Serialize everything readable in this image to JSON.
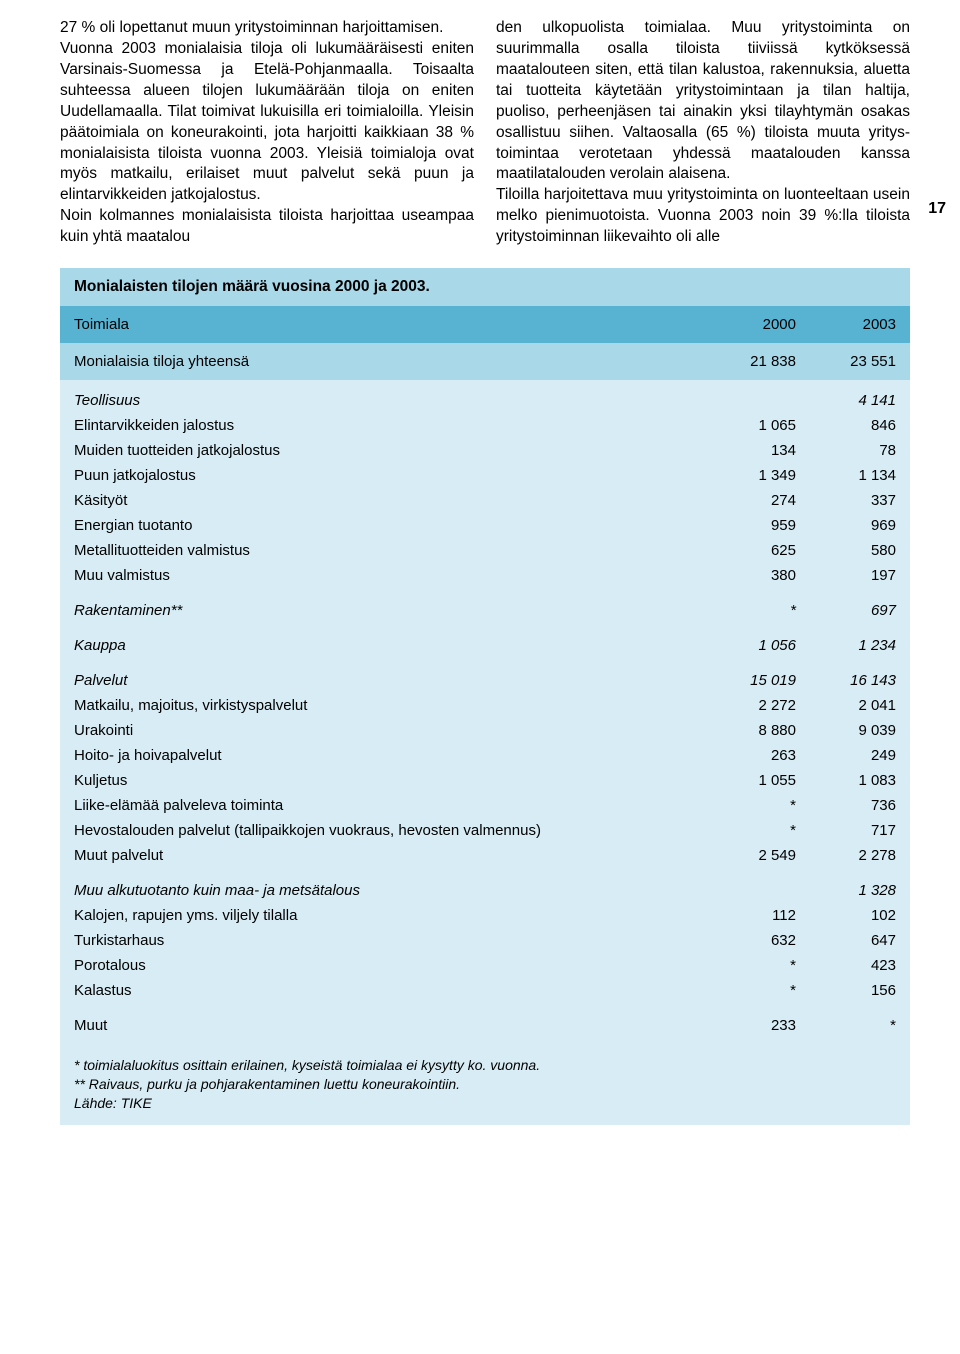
{
  "page_number": "17",
  "colors": {
    "header_band": "#58b3d3",
    "light_band": "#a9d8e8",
    "body_band": "#d7ecf4",
    "text": "#000000",
    "background": "#ffffff"
  },
  "paragraphs": {
    "left": "27 % oli lopettanut muun yritystoiminnan harjoittamisen.\n    Vuonna 2003 monialaisia tiloja oli lu­kumääräisesti eniten Varsinais-Suomessa ja Etelä-Pohjanmaalla. Toisaalta suhteessa alueen tilojen lukumäärään tiloja on eniten Uudellamaalla. Tilat toimivat lukuisilla eri toimialoilla. Yleisin päätoimiala on kone­urakointi, jota harjoitti kaikkiaan 38 % monialaisista tiloista vuonna 2003. Yleisiä toimialoja ovat myös matkailu, erilaiset muut palvelut sekä puun ja elintarvikkei­den jatkojalostus.\n    Noin kolmannes monialaisista tiloista harjoittaa useampaa kuin yhtä maatalou­",
    "right": "den ulkopuolista toimialaa. Muu yritystoi­minta on suurimmalla osalla tiloista tiiviis­sä kytköksessä maatalouteen siten, että ti­lan kalustoa, rakennuksia, aluetta tai tuot­teita käytetään yritystoimintaan ja tilan haltija, puoliso, perheenjäsen tai ainakin yksi tilayhtymän osakas osallistuu siihen. Valtaosalla (65 %) tiloista muuta yritys­toimintaa verotetaan yhdessä maatalou­den kanssa maatilatalouden verolain alai­sena.\n    Tiloilla harjoitettava muu yritystoi­minta on luonteeltaan usein melko pieni­muotoista. Vuonna 2003 noin 39 %:lla ti­loista yritystoiminnan liikevaihto oli alle"
  },
  "table": {
    "title": "Monialaisten tilojen määrä vuosina 2000 ja 2003.",
    "header": {
      "label": "Toimiala",
      "c2000": "2000",
      "c2003": "2003"
    },
    "total": {
      "label": "Monialaisia tiloja yhteensä",
      "c2000": "21 838",
      "c2003": "23 551"
    },
    "sections": [
      {
        "group": {
          "label": "Teollisuus",
          "c2000": "",
          "c2003": "4 141",
          "italic": true
        },
        "rows": [
          {
            "label": "Elintarvikkeiden jalostus",
            "c2000": "1 065",
            "c2003": "846"
          },
          {
            "label": "Muiden tuotteiden jatkojalostus",
            "c2000": "134",
            "c2003": "78"
          },
          {
            "label": "Puun jatkojalostus",
            "c2000": "1 349",
            "c2003": "1 134"
          },
          {
            "label": "Käsityöt",
            "c2000": "274",
            "c2003": "337"
          },
          {
            "label": "Energian tuotanto",
            "c2000": "959",
            "c2003": "969"
          },
          {
            "label": "Metallituotteiden valmistus",
            "c2000": "625",
            "c2003": "580"
          },
          {
            "label": "Muu valmistus",
            "c2000": "380",
            "c2003": "197"
          }
        ]
      },
      {
        "group": {
          "label": "Rakentaminen**",
          "c2000": "*",
          "c2003": "697",
          "italic": true
        },
        "rows": []
      },
      {
        "group": {
          "label": "Kauppa",
          "c2000": "1 056",
          "c2003": "1 234",
          "italic": true
        },
        "rows": []
      },
      {
        "group": {
          "label": "Palvelut",
          "c2000": "15 019",
          "c2003": "16 143",
          "italic": true
        },
        "rows": [
          {
            "label": "Matkailu, majoitus, virkistyspalvelut",
            "c2000": "2 272",
            "c2003": "2 041"
          },
          {
            "label": "Urakointi",
            "c2000": "8 880",
            "c2003": "9 039"
          },
          {
            "label": "Hoito- ja hoivapalvelut",
            "c2000": "263",
            "c2003": "249"
          },
          {
            "label": "Kuljetus",
            "c2000": "1 055",
            "c2003": "1 083"
          },
          {
            "label": "Liike-elämää palveleva toiminta",
            "c2000": "*",
            "c2003": "736"
          },
          {
            "label": "Hevostalouden palvelut (tallipaikkojen vuokraus, hevosten valmennus)",
            "c2000": "*",
            "c2003": "717"
          },
          {
            "label": "Muut palvelut",
            "c2000": "2 549",
            "c2003": "2 278"
          }
        ]
      },
      {
        "group": {
          "label": "Muu alkutuotanto kuin maa- ja metsätalous",
          "c2000": "",
          "c2003": "1 328",
          "italic": true
        },
        "rows": [
          {
            "label": "Kalojen, rapujen yms. viljely tilalla",
            "c2000": "112",
            "c2003": "102"
          },
          {
            "label": "Turkistarhaus",
            "c2000": "632",
            "c2003": "647"
          },
          {
            "label": "Porotalous",
            "c2000": "*",
            "c2003": "423"
          },
          {
            "label": "Kalastus",
            "c2000": "*",
            "c2003": "156"
          }
        ]
      },
      {
        "group": {
          "label": "Muut",
          "c2000": "233",
          "c2003": "*",
          "italic": false
        },
        "rows": []
      }
    ],
    "footnotes": [
      "* toimialaluokitus osittain erilainen, kyseistä toimialaa ei kysytty ko. vuonna.",
      "** Raivaus, purku ja pohjarakentaminen luettu koneurakointiin.",
      "Lähde: TIKE"
    ]
  }
}
